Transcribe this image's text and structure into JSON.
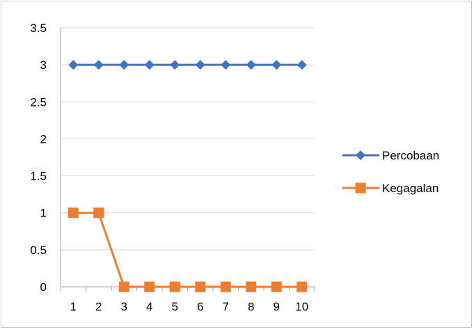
{
  "chart_data": {
    "type": "line",
    "title": "",
    "xlabel": "",
    "ylabel": "",
    "categories": [
      "1",
      "2",
      "3",
      "4",
      "5",
      "6",
      "7",
      "8",
      "9",
      "10"
    ],
    "ylim": [
      0,
      3.5
    ],
    "yticks": [
      0,
      0.5,
      1,
      1.5,
      2,
      2.5,
      3,
      3.5
    ],
    "ytick_labels": [
      "0",
      "0.5",
      "1",
      "1.5",
      "2",
      "2.5",
      "3",
      "3.5"
    ],
    "grid": true,
    "legend_position": "right",
    "series": [
      {
        "name": "Percobaan",
        "values": [
          3,
          3,
          3,
          3,
          3,
          3,
          3,
          3,
          3,
          3
        ],
        "color": "#4472c4",
        "marker": "diamond"
      },
      {
        "name": "Kegagalan",
        "values": [
          1,
          1,
          0,
          0,
          0,
          0,
          0,
          0,
          0,
          0
        ],
        "color": "#ed7d31",
        "marker": "square"
      }
    ]
  }
}
